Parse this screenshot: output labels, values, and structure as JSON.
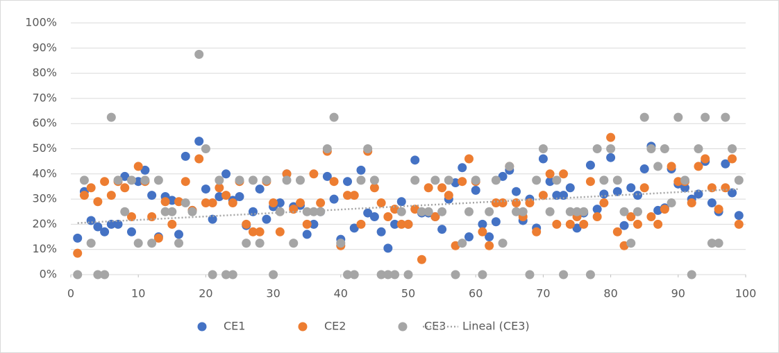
{
  "chart_data": {
    "type": "scatter",
    "x": [
      1,
      2,
      3,
      4,
      5,
      6,
      7,
      8,
      9,
      10,
      11,
      12,
      13,
      14,
      15,
      16,
      17,
      18,
      19,
      20,
      21,
      22,
      23,
      24,
      25,
      26,
      27,
      28,
      29,
      30,
      31,
      32,
      33,
      34,
      35,
      36,
      37,
      38,
      39,
      40,
      41,
      42,
      43,
      44,
      45,
      46,
      47,
      48,
      49,
      50,
      51,
      52,
      53,
      54,
      55,
      56,
      57,
      58,
      59,
      60,
      61,
      62,
      63,
      64,
      65,
      66,
      67,
      68,
      69,
      70,
      71,
      72,
      73,
      74,
      75,
      76,
      77,
      78,
      79,
      80,
      81,
      82,
      83,
      84,
      85,
      86,
      87,
      88,
      89,
      90,
      91,
      92,
      93,
      94,
      95,
      96,
      97,
      98,
      99
    ],
    "series": [
      {
        "name": "CE1",
        "color": "#4472c4",
        "values": [
          14.5,
          33,
          21.5,
          19,
          17,
          20,
          20,
          39,
          17,
          37,
          41.5,
          31.5,
          15,
          31,
          29.5,
          16,
          47,
          25.5,
          53,
          34,
          22,
          31,
          40,
          29.5,
          31,
          19.5,
          25,
          34,
          22,
          27,
          28.5,
          40,
          27,
          27.5,
          16,
          20,
          25,
          39,
          30,
          14,
          37,
          18.5,
          41.5,
          24.5,
          23,
          17,
          10.5,
          20,
          29,
          20,
          45.5,
          24.5,
          24.5,
          23,
          18,
          30,
          36.5,
          42.5,
          15,
          33.5,
          20,
          15,
          21,
          39,
          41.5,
          33,
          21.5,
          30,
          18.5,
          46,
          37,
          31.5,
          31.5,
          34.5,
          18.5,
          24.5,
          43.5,
          26,
          32,
          46.5,
          33,
          19.5,
          34.5,
          31.5,
          42,
          51,
          25.5,
          26.5,
          42,
          36,
          34.5,
          30,
          32,
          45,
          28.5,
          25,
          44,
          32.5,
          23.5
        ]
      },
      {
        "name": "CE2",
        "color": "#ed7d31",
        "values": [
          8.5,
          31.5,
          34.5,
          29,
          37,
          31.5,
          37,
          34.5,
          23,
          43,
          37,
          23,
          14.5,
          29,
          20,
          29,
          37,
          25.5,
          46,
          28.5,
          28.5,
          34.5,
          31.5,
          28.5,
          37,
          20,
          17,
          17,
          37,
          28.5,
          17,
          40,
          26,
          28.5,
          20,
          40,
          28.5,
          49,
          37,
          11.5,
          31.5,
          31.5,
          20,
          49,
          34.5,
          28.5,
          23,
          26,
          20,
          20,
          26,
          6,
          34.5,
          23,
          34.5,
          31.5,
          11.5,
          37,
          46,
          37,
          17,
          11.5,
          28.5,
          28.5,
          43,
          28.5,
          23,
          28.5,
          17,
          31.5,
          40,
          20,
          40,
          20,
          23,
          20,
          37,
          23,
          28.5,
          54.5,
          17,
          11.5,
          23,
          20,
          34.5,
          23,
          20,
          26,
          43,
          37,
          37,
          28.5,
          43,
          46,
          34.5,
          26,
          34.5,
          46,
          20
        ]
      },
      {
        "name": "CE3",
        "color": "#a5a5a5",
        "values": [
          0,
          37.5,
          12.5,
          0,
          0,
          62.5,
          37.5,
          25,
          37.5,
          12.5,
          37.5,
          12.5,
          37.5,
          25,
          25,
          12.5,
          28.5,
          25,
          87.5,
          50,
          0,
          37.5,
          0,
          0,
          37.5,
          12.5,
          37.5,
          12.5,
          37.5,
          0,
          25,
          37.5,
          12.5,
          37.5,
          25,
          25,
          25,
          50,
          62.5,
          12.5,
          0,
          0,
          37.5,
          50,
          37.5,
          0,
          0,
          0,
          25,
          0,
          37.5,
          25,
          25,
          37.5,
          25,
          37.5,
          0,
          12.5,
          25,
          37.5,
          0,
          25,
          37.5,
          12.5,
          43,
          25,
          25,
          0,
          37.5,
          50,
          25,
          37.5,
          0,
          25,
          25,
          25,
          0,
          50,
          37.5,
          50,
          37.5,
          25,
          12.5,
          25,
          62.5,
          50,
          43,
          50,
          28.5,
          62.5,
          37.5,
          0,
          50,
          62.5,
          12.5,
          12.5,
          62.5,
          50,
          37.5
        ]
      }
    ],
    "trendline": {
      "name": "Lineal (CE3)",
      "color": "#a5a5a5",
      "x": [
        1,
        99
      ],
      "values": [
        20.5,
        34
      ]
    },
    "xlim": [
      0,
      100
    ],
    "xticks": [
      0,
      10,
      20,
      30,
      40,
      50,
      60,
      70,
      80,
      90,
      100
    ],
    "ylim": [
      0,
      100
    ],
    "yticks": [
      {
        "value": 0,
        "label": "0%"
      },
      {
        "value": 10,
        "label": "10%"
      },
      {
        "value": 20,
        "label": "20%"
      },
      {
        "value": 30,
        "label": "30%"
      },
      {
        "value": 40,
        "label": "40%"
      },
      {
        "value": 50,
        "label": "50%"
      },
      {
        "value": 60,
        "label": "60%"
      },
      {
        "value": 70,
        "label": "70%"
      },
      {
        "value": 80,
        "label": "80%"
      },
      {
        "value": 90,
        "label": "90%"
      },
      {
        "value": 100,
        "label": "100%"
      }
    ],
    "grid": true,
    "legend": "bottom"
  }
}
